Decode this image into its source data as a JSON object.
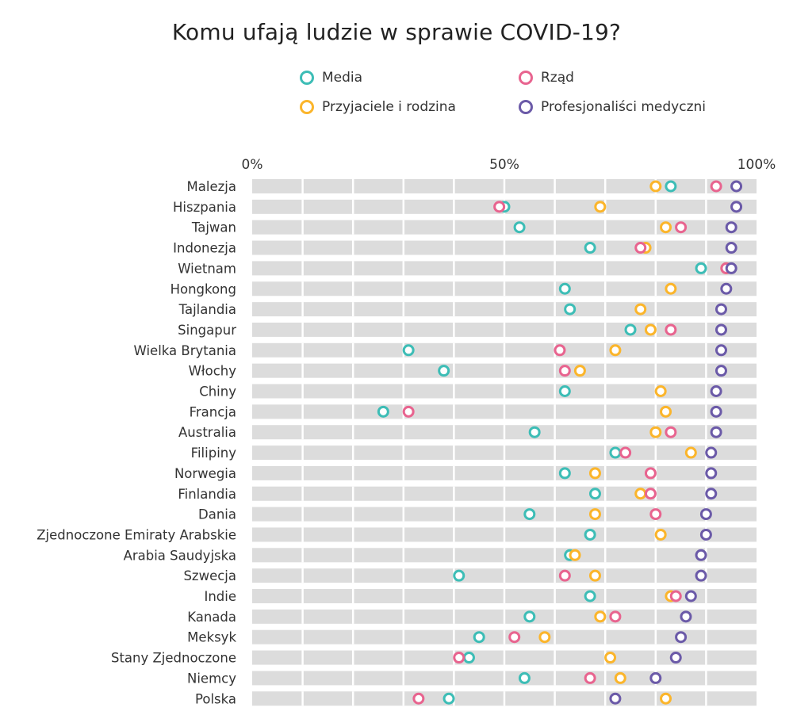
{
  "chart_data": {
    "type": "scatter",
    "title": "Komu ufają ludzie w sprawie COVID-19?",
    "xlim": [
      0,
      100
    ],
    "x_ticks": [
      "0%",
      "50%",
      "100%"
    ],
    "grid": "vertical every 10%",
    "legend_position": "top",
    "categories": [
      "Malezja",
      "Hiszpania",
      "Tajwan",
      "Indonezja",
      "Wietnam",
      "Hongkong",
      "Tajlandia",
      "Singapur",
      "Wielka Brytania",
      "Włochy",
      "Chiny",
      "Francja",
      "Australia",
      "Filipiny",
      "Norwegia",
      "Finlandia",
      "Dania",
      "Zjednoczone Emiraty Arabskie",
      "Arabia Saudyjska",
      "Szwecja",
      "Indie",
      "Kanada",
      "Meksyk",
      "Stany Zjednoczone",
      "Niemcy",
      "Polska"
    ],
    "series": [
      {
        "name": "Media",
        "color": "#3dbdb6",
        "values": [
          83,
          50,
          53,
          67,
          89,
          62,
          63,
          75,
          31,
          38,
          62,
          26,
          56,
          72,
          62,
          68,
          55,
          67,
          63,
          41,
          67,
          55,
          45,
          43,
          54,
          39
        ]
      },
      {
        "name": "Przyjaciele i rodzina",
        "color": "#fbb52b",
        "values": [
          80,
          69,
          82,
          78,
          94,
          83,
          77,
          79,
          72,
          65,
          81,
          82,
          80,
          87,
          68,
          77,
          68,
          81,
          64,
          68,
          83,
          69,
          58,
          71,
          73,
          82
        ]
      },
      {
        "name": "Rząd",
        "color": "#e8648f",
        "values": [
          92,
          49,
          85,
          77,
          94,
          null,
          null,
          83,
          61,
          62,
          null,
          31,
          83,
          74,
          79,
          79,
          80,
          null,
          null,
          62,
          84,
          72,
          52,
          41,
          67,
          33
        ]
      },
      {
        "name": "Profesjonaliści medyczni",
        "color": "#6b5aa8",
        "values": [
          96,
          96,
          95,
          95,
          95,
          94,
          93,
          93,
          93,
          93,
          92,
          92,
          92,
          91,
          91,
          91,
          90,
          90,
          89,
          89,
          87,
          86,
          85,
          84,
          80,
          72
        ]
      }
    ]
  }
}
